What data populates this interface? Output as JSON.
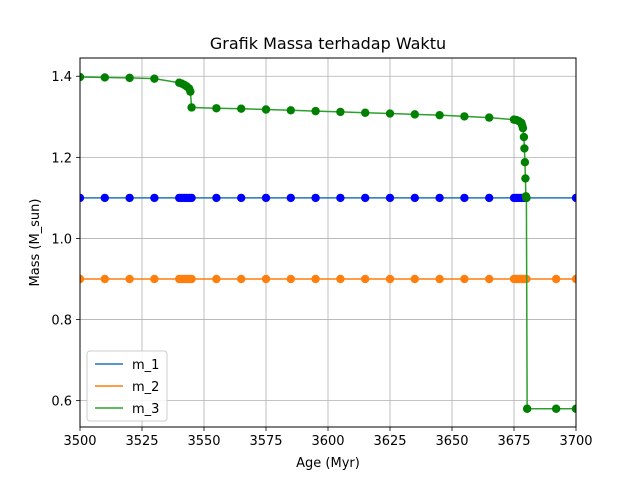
{
  "chart_data": {
    "type": "line",
    "title": "Grafik Massa terhadap Waktu",
    "xlabel": "Age (Myr)",
    "ylabel": "Mass (M_sun)",
    "xlim": [
      3500,
      3700
    ],
    "ylim": [
      0.535,
      1.445
    ],
    "x_ticks": [
      3500,
      3525,
      3550,
      3575,
      3600,
      3625,
      3650,
      3675,
      3700
    ],
    "x_tick_labels": [
      "3500",
      "3525",
      "3550",
      "3575",
      "3600",
      "3625",
      "3650",
      "3675",
      "3700"
    ],
    "y_ticks": [
      0.6,
      0.8,
      1.0,
      1.2,
      1.4
    ],
    "y_tick_labels": [
      "0.6",
      "0.8",
      "1.0",
      "1.2",
      "1.4"
    ],
    "grid": true,
    "legend_position": "lower-left",
    "series": [
      {
        "name": "m_1",
        "line_color": "#1f77b4",
        "marker_color": "#0000ff",
        "x": [
          3500,
          3510,
          3520,
          3530,
          3540,
          3541,
          3542,
          3543,
          3544,
          3545,
          3555,
          3565,
          3575,
          3585,
          3595,
          3605,
          3615,
          3625,
          3635,
          3645,
          3655,
          3665,
          3675,
          3676,
          3677,
          3678,
          3679,
          3680,
          3700
        ],
        "y": [
          1.1,
          1.1,
          1.1,
          1.1,
          1.1,
          1.1,
          1.1,
          1.1,
          1.1,
          1.1,
          1.1,
          1.1,
          1.1,
          1.1,
          1.1,
          1.1,
          1.1,
          1.1,
          1.1,
          1.1,
          1.1,
          1.1,
          1.1,
          1.1,
          1.1,
          1.1,
          1.1,
          1.1,
          1.1
        ]
      },
      {
        "name": "m_2",
        "line_color": "#ff7f0e",
        "marker_color": "#ff7f0e",
        "x": [
          3500,
          3510,
          3520,
          3530,
          3540,
          3541,
          3542,
          3543,
          3544,
          3545,
          3555,
          3565,
          3575,
          3585,
          3595,
          3605,
          3615,
          3625,
          3635,
          3645,
          3655,
          3665,
          3675,
          3676,
          3677,
          3678,
          3679,
          3680,
          3692,
          3700
        ],
        "y": [
          0.9,
          0.9,
          0.9,
          0.9,
          0.9,
          0.9,
          0.9,
          0.9,
          0.9,
          0.9,
          0.9,
          0.9,
          0.9,
          0.9,
          0.9,
          0.9,
          0.9,
          0.9,
          0.9,
          0.9,
          0.9,
          0.9,
          0.9,
          0.9,
          0.9,
          0.9,
          0.9,
          0.9,
          0.9,
          0.9
        ]
      },
      {
        "name": "m_3",
        "line_color": "#2ca02c",
        "marker_color": "#008000",
        "x": [
          3500,
          3510,
          3520,
          3530,
          3540,
          3541,
          3542,
          3543,
          3544,
          3544.5,
          3545,
          3555,
          3565,
          3575,
          3585,
          3595,
          3605,
          3615,
          3625,
          3635,
          3645,
          3655,
          3665,
          3675,
          3676,
          3677,
          3678,
          3678.3,
          3678.6,
          3679,
          3679.2,
          3679.4,
          3679.6,
          3679.8,
          3680,
          3680.3,
          3692,
          3700
        ],
        "y": [
          1.398,
          1.397,
          1.396,
          1.394,
          1.384,
          1.382,
          1.379,
          1.375,
          1.37,
          1.362,
          1.323,
          1.321,
          1.32,
          1.318,
          1.316,
          1.314,
          1.312,
          1.31,
          1.308,
          1.306,
          1.304,
          1.301,
          1.298,
          1.293,
          1.292,
          1.289,
          1.285,
          1.279,
          1.272,
          1.25,
          1.222,
          1.188,
          1.148,
          1.104,
          1.1,
          0.58,
          0.58,
          0.58
        ]
      }
    ]
  }
}
